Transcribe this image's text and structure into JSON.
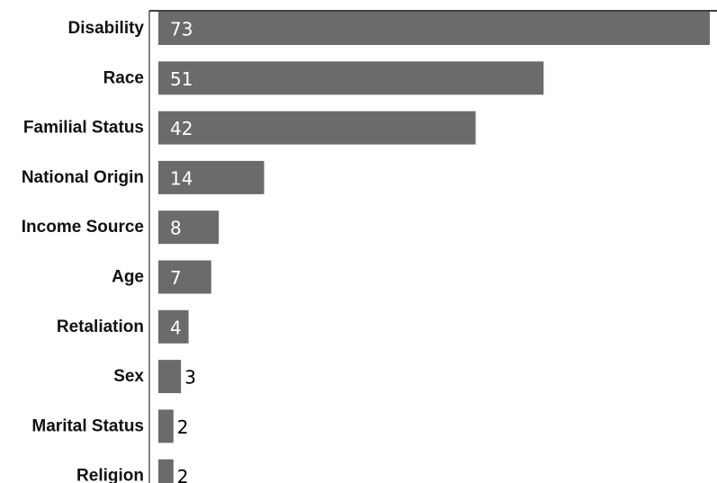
{
  "colors": {
    "bar": "#6b6b6b",
    "axis": "#000000",
    "label_inside": "#ffffff",
    "label_outside": "#000000"
  },
  "chart_data": {
    "type": "bar",
    "orientation": "horizontal",
    "categories": [
      "Disability",
      "Race",
      "Familial Status",
      "National Origin",
      "Income Source",
      "Age",
      "Retaliation",
      "Sex",
      "Marital Status",
      "Religion"
    ],
    "values": [
      73,
      51,
      42,
      14,
      8,
      7,
      4,
      3,
      2,
      2
    ],
    "title": "",
    "xlabel": "",
    "ylabel": "",
    "xlim": [
      0,
      73
    ],
    "grid": false,
    "legend": "none",
    "data_labels": true
  }
}
